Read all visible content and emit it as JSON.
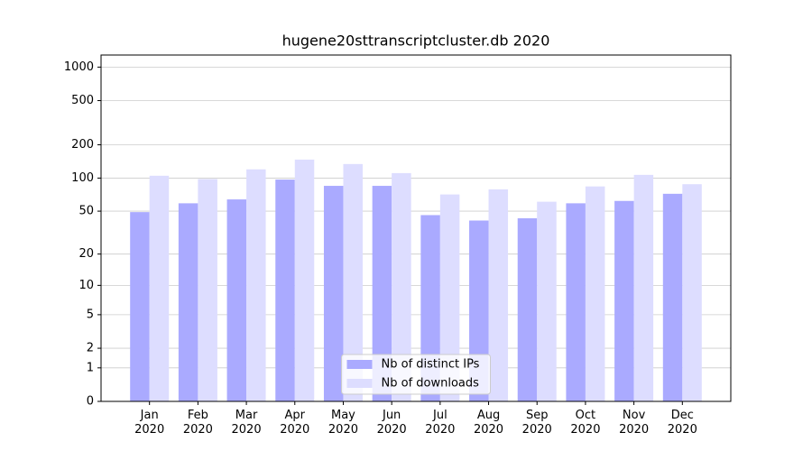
{
  "chart_data": {
    "type": "bar",
    "title": "hugene20sttranscriptcluster.db 2020",
    "categories": [
      "Jan\n2020",
      "Feb\n2020",
      "Mar\n2020",
      "Apr\n2020",
      "May\n2020",
      "Jun\n2020",
      "Jul\n2020",
      "Aug\n2020",
      "Sep\n2020",
      "Oct\n2020",
      "Nov\n2020",
      "Dec\n2020"
    ],
    "series": [
      {
        "name": "Nb of distinct IPs",
        "color": "#aaaaff",
        "values": [
          49,
          59,
          64,
          97,
          85,
          85,
          46,
          41,
          43,
          59,
          62,
          72
        ]
      },
      {
        "name": "Nb of downloads",
        "color": "#ddddff",
        "values": [
          105,
          98,
          120,
          147,
          134,
          111,
          71,
          79,
          61,
          84,
          107,
          88
        ]
      }
    ],
    "yscale": "log1p",
    "ylim": [
      0,
      1284
    ],
    "yticks": [
      0,
      1,
      2,
      5,
      10,
      20,
      50,
      100,
      200,
      500,
      1000
    ],
    "grid": true,
    "legend": "lower center"
  }
}
